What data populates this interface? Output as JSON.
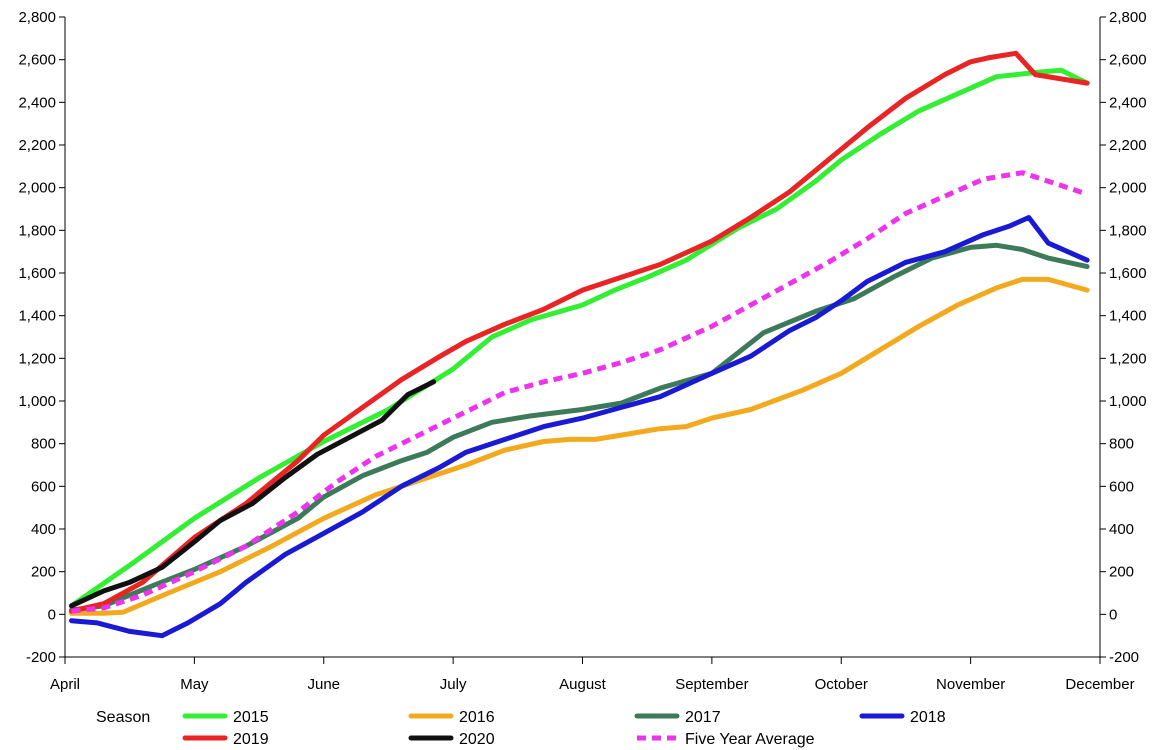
{
  "chart_data": {
    "type": "line",
    "title": "",
    "xlabel": "",
    "ylabel": "",
    "x_ticks": [
      "April",
      "May",
      "June",
      "July",
      "August",
      "September",
      "October",
      "November",
      "December"
    ],
    "xlim": [
      0,
      8
    ],
    "ylim": [
      -200,
      2800
    ],
    "y_ticks": [
      "-200",
      "0",
      "200",
      "400",
      "600",
      "800",
      "1,000",
      "1,200",
      "1,400",
      "1,600",
      "1,800",
      "2,000",
      "2,200",
      "2,400",
      "2,600",
      "2,800"
    ],
    "y_tick_values": [
      -200,
      0,
      200,
      400,
      600,
      800,
      1000,
      1200,
      1400,
      1600,
      1800,
      2000,
      2200,
      2400,
      2600,
      2800
    ],
    "secondary_y_axis": true,
    "grid": false,
    "legend_title": "Season",
    "legend_position": "bottom",
    "series": [
      {
        "name": "2015",
        "color": "#33ee33",
        "dash": "solid",
        "x": [
          0.05,
          0.5,
          1.0,
          1.5,
          2.0,
          2.5,
          3.0,
          3.3,
          3.6,
          4.0,
          4.25,
          4.5,
          4.8,
          5.2,
          5.5,
          5.8,
          6.0,
          6.3,
          6.6,
          6.9,
          7.2,
          7.5,
          7.7,
          7.9
        ],
        "y": [
          40,
          230,
          450,
          640,
          810,
          960,
          1150,
          1300,
          1380,
          1450,
          1520,
          1580,
          1660,
          1810,
          1900,
          2030,
          2130,
          2250,
          2360,
          2440,
          2520,
          2540,
          2550,
          2490
        ]
      },
      {
        "name": "2016",
        "color": "#f2a91e",
        "dash": "solid",
        "x": [
          0.05,
          0.3,
          0.45,
          0.8,
          1.2,
          1.6,
          2.0,
          2.4,
          2.8,
          3.1,
          3.4,
          3.7,
          3.9,
          4.1,
          4.3,
          4.6,
          4.8,
          5.0,
          5.3,
          5.7,
          6.0,
          6.3,
          6.6,
          6.9,
          7.2,
          7.4,
          7.6,
          7.9
        ],
        "y": [
          5,
          5,
          10,
          100,
          200,
          320,
          450,
          560,
          640,
          700,
          770,
          810,
          820,
          820,
          840,
          870,
          880,
          920,
          960,
          1050,
          1130,
          1240,
          1350,
          1450,
          1530,
          1570,
          1570,
          1520
        ]
      },
      {
        "name": "2017",
        "color": "#3d7a5a",
        "dash": "solid",
        "x": [
          0.05,
          0.3,
          0.7,
          1.0,
          1.4,
          1.8,
          2.0,
          2.3,
          2.6,
          2.8,
          3.0,
          3.3,
          3.6,
          4.0,
          4.3,
          4.6,
          5.0,
          5.4,
          5.8,
          6.1,
          6.4,
          6.7,
          7.0,
          7.2,
          7.4,
          7.6,
          7.9
        ],
        "y": [
          20,
          40,
          140,
          210,
          320,
          450,
          550,
          650,
          720,
          760,
          830,
          900,
          930,
          960,
          990,
          1060,
          1130,
          1320,
          1420,
          1480,
          1580,
          1670,
          1720,
          1730,
          1710,
          1670,
          1630
        ]
      },
      {
        "name": "2018",
        "color": "#1a1ad4",
        "dash": "solid",
        "x": [
          0.05,
          0.25,
          0.5,
          0.75,
          0.95,
          1.2,
          1.4,
          1.7,
          2.0,
          2.3,
          2.6,
          2.9,
          3.1,
          3.4,
          3.7,
          4.0,
          4.3,
          4.6,
          5.0,
          5.3,
          5.6,
          5.8,
          6.0,
          6.2,
          6.5,
          6.8,
          7.1,
          7.3,
          7.45,
          7.6,
          7.9
        ],
        "y": [
          -30,
          -40,
          -80,
          -100,
          -40,
          50,
          150,
          280,
          380,
          480,
          600,
          690,
          760,
          820,
          880,
          920,
          970,
          1020,
          1130,
          1210,
          1330,
          1390,
          1470,
          1560,
          1650,
          1700,
          1780,
          1820,
          1860,
          1740,
          1660
        ]
      },
      {
        "name": "2019",
        "color": "#e82424",
        "dash": "solid",
        "x": [
          0.05,
          0.3,
          0.6,
          1.0,
          1.4,
          1.8,
          2.0,
          2.3,
          2.6,
          2.9,
          3.1,
          3.4,
          3.7,
          4.0,
          4.3,
          4.6,
          5.0,
          5.3,
          5.6,
          5.9,
          6.2,
          6.5,
          6.8,
          7.0,
          7.15,
          7.35,
          7.5,
          7.9
        ],
        "y": [
          15,
          50,
          150,
          360,
          520,
          720,
          840,
          970,
          1100,
          1210,
          1280,
          1360,
          1430,
          1520,
          1580,
          1640,
          1750,
          1860,
          1980,
          2130,
          2280,
          2420,
          2530,
          2590,
          2610,
          2630,
          2530,
          2490
        ]
      },
      {
        "name": "2020",
        "color": "#111111",
        "dash": "solid",
        "x": [
          0.05,
          0.3,
          0.5,
          0.75,
          1.0,
          1.2,
          1.45,
          1.7,
          1.95,
          2.2,
          2.45,
          2.65,
          2.85
        ],
        "y": [
          40,
          110,
          150,
          220,
          340,
          440,
          520,
          640,
          750,
          830,
          910,
          1030,
          1090
        ]
      },
      {
        "name": "Five Year Average",
        "color": "#ee33ee",
        "dash": "dashed",
        "x": [
          0.05,
          0.3,
          0.6,
          1.0,
          1.4,
          1.8,
          2.1,
          2.4,
          2.8,
          3.1,
          3.4,
          3.7,
          4.0,
          4.3,
          4.6,
          5.0,
          5.3,
          5.6,
          5.9,
          6.2,
          6.5,
          6.8,
          7.1,
          7.4,
          7.7,
          7.9
        ],
        "y": [
          15,
          30,
          90,
          200,
          320,
          480,
          620,
          740,
          860,
          950,
          1040,
          1090,
          1130,
          1180,
          1240,
          1350,
          1450,
          1550,
          1650,
          1760,
          1880,
          1960,
          2040,
          2070,
          2010,
          1970
        ]
      }
    ]
  }
}
